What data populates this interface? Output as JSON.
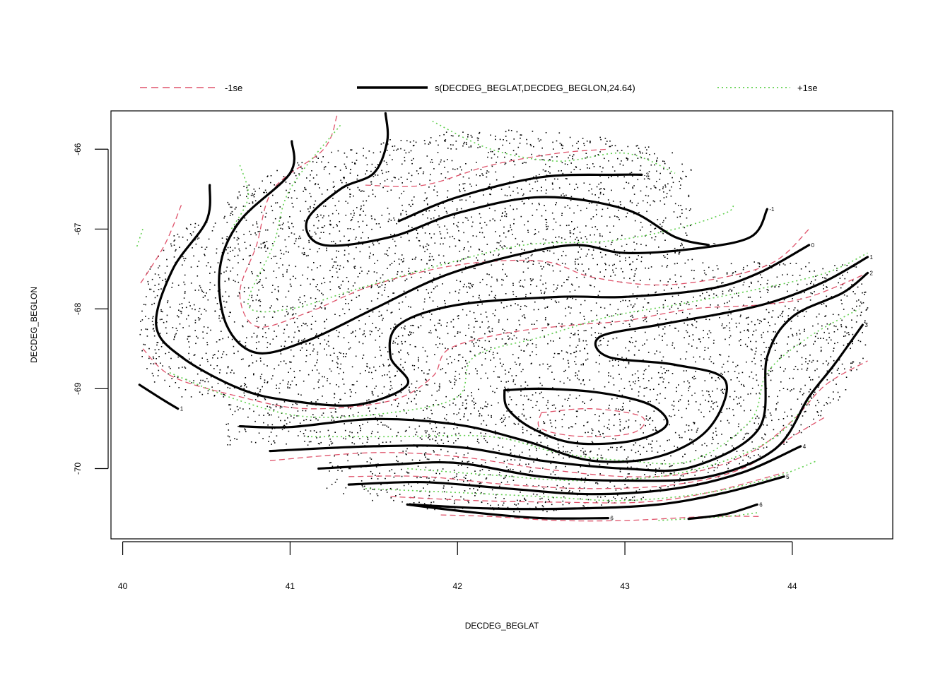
{
  "chart_data": {
    "type": "contour",
    "title": "",
    "xlabel": "DECDEG_BEGLAT",
    "ylabel": "DECDEG_BEGLON",
    "xlim": [
      39.93,
      44.6
    ],
    "ylim": [
      -70.88,
      -65.52
    ],
    "xticks": [
      40,
      41,
      42,
      43,
      44
    ],
    "yticks": [
      -66,
      -67,
      -68,
      -69,
      -70
    ],
    "legend_position": "top",
    "legend": [
      {
        "label": "-1se",
        "color": "#DF536B",
        "style": "dashed"
      },
      {
        "label": "s(DECDEG_BEGLAT,DECDEG_BEGLON,24.64)",
        "color": "#000000",
        "style": "solid"
      },
      {
        "label": "+1se",
        "color": "#61D04F",
        "style": "dotted"
      }
    ],
    "contour_labels": [
      "-2",
      "-1",
      "0",
      "1",
      "2",
      "3",
      "4",
      "5",
      "6"
    ],
    "colors": {
      "lower": "#DF536B",
      "fit": "#000000",
      "upper": "#61D04F",
      "points": "#000000"
    },
    "contours": [
      {
        "level": -2,
        "points": [
          [
            41.57,
            -65.55
          ],
          [
            41.58,
            -65.9
          ],
          [
            41.5,
            -66.3
          ],
          [
            41.3,
            -66.5
          ],
          [
            41.1,
            -66.9
          ],
          [
            41.2,
            -67.2
          ],
          [
            41.6,
            -67.1
          ],
          [
            42,
            -66.8
          ],
          [
            42.5,
            -66.6
          ],
          [
            43,
            -66.75
          ],
          [
            43.3,
            -67.1
          ],
          [
            43.5,
            -67.2
          ]
        ]
      },
      {
        "level": -2,
        "points": [
          [
            41.65,
            -66.9
          ],
          [
            42,
            -66.6
          ],
          [
            42.5,
            -66.35
          ],
          [
            42.95,
            -66.32
          ],
          [
            43.1,
            -66.32
          ]
        ]
      },
      {
        "level": -1,
        "points": [
          [
            41.01,
            -65.9
          ],
          [
            41,
            -66.3
          ],
          [
            40.7,
            -66.9
          ],
          [
            40.58,
            -67.5
          ],
          [
            40.62,
            -68.2
          ],
          [
            40.8,
            -68.55
          ],
          [
            41.1,
            -68.4
          ],
          [
            41.5,
            -68
          ],
          [
            41.9,
            -67.6
          ],
          [
            42.3,
            -67.35
          ],
          [
            42.7,
            -67.2
          ],
          [
            43.0,
            -67.3
          ],
          [
            43.4,
            -67.25
          ],
          [
            43.75,
            -67.1
          ],
          [
            43.85,
            -66.75
          ]
        ]
      },
      {
        "level": 0,
        "points": [
          [
            40.52,
            -66.45
          ],
          [
            40.5,
            -66.9
          ],
          [
            40.3,
            -67.5
          ],
          [
            40.2,
            -68.2
          ],
          [
            40.35,
            -68.6
          ],
          [
            40.7,
            -69
          ],
          [
            41,
            -69.15
          ],
          [
            41.4,
            -69.2
          ],
          [
            41.7,
            -68.95
          ],
          [
            41.6,
            -68.6
          ],
          [
            41.65,
            -68.2
          ],
          [
            42,
            -67.95
          ],
          [
            42.6,
            -67.85
          ],
          [
            43,
            -67.85
          ],
          [
            43.5,
            -67.75
          ],
          [
            43.8,
            -67.55
          ],
          [
            44.1,
            -67.2
          ]
        ]
      },
      {
        "level": 0,
        "points": [
          [
            42.28,
            -69.02
          ],
          [
            42.5,
            -69
          ],
          [
            42.85,
            -69.05
          ],
          [
            43.15,
            -69.2
          ],
          [
            43.25,
            -69.45
          ],
          [
            43.05,
            -69.65
          ],
          [
            42.7,
            -69.68
          ],
          [
            42.45,
            -69.5
          ],
          [
            42.3,
            -69.25
          ],
          [
            42.28,
            -69.02
          ]
        ]
      },
      {
        "level": 1,
        "points": [
          [
            40.7,
            -69.47
          ],
          [
            41,
            -69.48
          ],
          [
            41.5,
            -69.38
          ],
          [
            42,
            -69.45
          ],
          [
            42.4,
            -69.65
          ],
          [
            42.8,
            -69.9
          ],
          [
            43.2,
            -69.85
          ],
          [
            43.5,
            -69.5
          ],
          [
            43.6,
            -68.9
          ],
          [
            43.3,
            -68.7
          ],
          [
            42.9,
            -68.6
          ],
          [
            42.85,
            -68.35
          ],
          [
            43.2,
            -68.2
          ],
          [
            43.6,
            -68.05
          ],
          [
            43.9,
            -67.9
          ],
          [
            44.2,
            -67.65
          ],
          [
            44.45,
            -67.35
          ]
        ]
      },
      {
        "level": 2,
        "points": [
          [
            40.88,
            -69.78
          ],
          [
            41.5,
            -69.72
          ],
          [
            42,
            -69.73
          ],
          [
            42.5,
            -69.9
          ],
          [
            43,
            -70.0
          ],
          [
            43.4,
            -69.98
          ],
          [
            43.8,
            -69.5
          ],
          [
            43.85,
            -68.6
          ],
          [
            44.0,
            -68.1
          ],
          [
            44.3,
            -67.8
          ],
          [
            44.45,
            -67.55
          ]
        ]
      },
      {
        "level": 3,
        "points": [
          [
            41.17,
            -70.0
          ],
          [
            41.6,
            -69.95
          ],
          [
            42,
            -69.93
          ],
          [
            42.5,
            -70.1
          ],
          [
            43,
            -70.15
          ],
          [
            43.5,
            -70.1
          ],
          [
            43.9,
            -69.75
          ],
          [
            44.1,
            -69.1
          ],
          [
            44.25,
            -68.7
          ],
          [
            44.42,
            -68.2
          ]
        ]
      },
      {
        "level": 4,
        "points": [
          [
            41.35,
            -70.2
          ],
          [
            41.8,
            -70.17
          ],
          [
            42.3,
            -70.25
          ],
          [
            42.8,
            -70.32
          ],
          [
            43.3,
            -70.25
          ],
          [
            43.7,
            -70.05
          ],
          [
            44.05,
            -69.72
          ]
        ]
      },
      {
        "level": 5,
        "points": [
          [
            41.72,
            -70.45
          ],
          [
            42.2,
            -70.5
          ],
          [
            42.7,
            -70.5
          ],
          [
            43.2,
            -70.45
          ],
          [
            43.6,
            -70.3
          ],
          [
            43.95,
            -70.1
          ]
        ]
      },
      {
        "level": 6,
        "points": [
          [
            41.7,
            -70.45
          ],
          [
            42.1,
            -70.55
          ],
          [
            42.5,
            -70.62
          ],
          [
            42.9,
            -70.62
          ]
        ]
      },
      {
        "level": 6,
        "points": [
          [
            43.38,
            -70.63
          ],
          [
            43.6,
            -70.57
          ],
          [
            43.79,
            -70.45
          ]
        ]
      },
      {
        "level": 1,
        "points": [
          [
            40.1,
            -68.95
          ],
          [
            40.25,
            -69.15
          ],
          [
            40.33,
            -69.25
          ]
        ]
      }
    ],
    "contours_lower": [
      {
        "points": [
          [
            41.28,
            -65.58
          ],
          [
            41.2,
            -66.0
          ],
          [
            40.9,
            -66.5
          ],
          [
            40.8,
            -67.2
          ],
          [
            40.7,
            -67.8
          ],
          [
            40.8,
            -68.22
          ],
          [
            41.1,
            -68.05
          ],
          [
            41.5,
            -67.7
          ],
          [
            42,
            -67.45
          ],
          [
            42.5,
            -67.4
          ],
          [
            42.8,
            -67.6
          ],
          [
            43.2,
            -67.7
          ],
          [
            43.6,
            -67.6
          ],
          [
            43.9,
            -67.4
          ],
          [
            44.1,
            -67.0
          ]
        ]
      },
      {
        "points": [
          [
            40.35,
            -66.7
          ],
          [
            40.25,
            -67.2
          ],
          [
            40.1,
            -67.7
          ]
        ]
      },
      {
        "points": [
          [
            40.12,
            -68.5
          ],
          [
            40.3,
            -68.85
          ],
          [
            40.7,
            -69.1
          ],
          [
            41.1,
            -69.25
          ],
          [
            41.6,
            -69.15
          ],
          [
            41.85,
            -68.85
          ],
          [
            41.95,
            -68.5
          ],
          [
            42.3,
            -68.3
          ],
          [
            42.7,
            -68.2
          ],
          [
            43.0,
            -68.15
          ],
          [
            43.4,
            -68.0
          ],
          [
            43.8,
            -67.95
          ],
          [
            44.1,
            -67.85
          ],
          [
            44.45,
            -67.55
          ]
        ]
      },
      {
        "points": [
          [
            41.45,
            -66.45
          ],
          [
            41.8,
            -66.45
          ],
          [
            42.2,
            -66.2
          ],
          [
            42.6,
            -66.05
          ],
          [
            42.9,
            -66.0
          ]
        ]
      },
      {
        "points": [
          [
            42.5,
            -69.3
          ],
          [
            42.8,
            -69.25
          ],
          [
            43.1,
            -69.35
          ],
          [
            43.05,
            -69.55
          ],
          [
            42.75,
            -69.6
          ],
          [
            42.5,
            -69.5
          ],
          [
            42.5,
            -69.3
          ]
        ]
      },
      {
        "points": [
          [
            40.88,
            -69.9
          ],
          [
            41.5,
            -69.8
          ],
          [
            42,
            -69.85
          ],
          [
            42.5,
            -70.0
          ],
          [
            43,
            -70.1
          ],
          [
            43.4,
            -70.05
          ],
          [
            43.75,
            -69.8
          ],
          [
            44.0,
            -69.4
          ],
          [
            44.2,
            -68.95
          ],
          [
            44.45,
            -68.65
          ]
        ]
      },
      {
        "points": [
          [
            41.35,
            -70.1
          ],
          [
            41.8,
            -70.1
          ],
          [
            42.3,
            -70.2
          ],
          [
            42.8,
            -70.25
          ],
          [
            43.3,
            -70.2
          ],
          [
            43.7,
            -70.0
          ],
          [
            44.0,
            -69.6
          ],
          [
            44.2,
            -69.35
          ]
        ]
      },
      {
        "points": [
          [
            41.6,
            -70.35
          ],
          [
            42.1,
            -70.4
          ],
          [
            42.6,
            -70.42
          ],
          [
            43.1,
            -70.42
          ],
          [
            43.5,
            -70.3
          ],
          [
            43.95,
            -70.05
          ]
        ]
      },
      {
        "points": [
          [
            41.9,
            -70.58
          ],
          [
            42.2,
            -70.6
          ],
          [
            42.6,
            -70.65
          ],
          [
            43.0,
            -70.65
          ],
          [
            43.5,
            -70.6
          ],
          [
            43.8,
            -70.6
          ]
        ]
      }
    ],
    "contours_upper": [
      {
        "points": [
          [
            41.3,
            -65.7
          ],
          [
            41.0,
            -66.5
          ],
          [
            40.9,
            -67.2
          ],
          [
            40.75,
            -67.95
          ],
          [
            41.0,
            -68.0
          ],
          [
            41.4,
            -67.75
          ],
          [
            41.9,
            -67.45
          ],
          [
            42.4,
            -67.2
          ],
          [
            42.9,
            -67.15
          ],
          [
            43.3,
            -67.0
          ],
          [
            43.6,
            -66.8
          ],
          [
            43.65,
            -66.7
          ]
        ]
      },
      {
        "points": [
          [
            40.12,
            -67.0
          ],
          [
            40.08,
            -67.25
          ]
        ]
      },
      {
        "points": [
          [
            41.85,
            -65.65
          ],
          [
            42.2,
            -66.0
          ],
          [
            42.6,
            -66.15
          ],
          [
            43.0,
            -66.05
          ],
          [
            43.3,
            -66.3
          ]
        ]
      },
      {
        "points": [
          [
            40.7,
            -66.2
          ],
          [
            40.75,
            -66.6
          ],
          [
            40.65,
            -67.0
          ]
        ]
      },
      {
        "points": [
          [
            40.28,
            -68.8
          ],
          [
            40.7,
            -69.15
          ],
          [
            41.1,
            -69.35
          ],
          [
            41.6,
            -69.3
          ],
          [
            42.0,
            -69.1
          ],
          [
            42.1,
            -68.6
          ],
          [
            42.5,
            -68.35
          ],
          [
            42.9,
            -68.1
          ],
          [
            43.3,
            -67.95
          ],
          [
            43.8,
            -67.75
          ],
          [
            44.2,
            -67.55
          ],
          [
            44.45,
            -67.3
          ]
        ]
      },
      {
        "points": [
          [
            41.1,
            -69.6
          ],
          [
            41.6,
            -69.6
          ],
          [
            42.2,
            -69.6
          ],
          [
            42.6,
            -69.8
          ],
          [
            43.0,
            -69.9
          ],
          [
            43.4,
            -69.9
          ],
          [
            43.75,
            -69.4
          ],
          [
            43.85,
            -68.8
          ],
          [
            44.1,
            -68.35
          ],
          [
            44.4,
            -68.0
          ]
        ]
      },
      {
        "points": [
          [
            41.45,
            -70.25
          ],
          [
            42.0,
            -70.3
          ],
          [
            42.5,
            -70.35
          ],
          [
            43.0,
            -70.4
          ],
          [
            43.5,
            -70.3
          ],
          [
            43.9,
            -70.1
          ],
          [
            44.15,
            -69.9
          ]
        ]
      },
      {
        "points": [
          [
            41.7,
            -70.0
          ],
          [
            42.2,
            -70.08
          ],
          [
            42.7,
            -70.15
          ],
          [
            43.2,
            -70.1
          ],
          [
            43.6,
            -69.9
          ],
          [
            43.9,
            -69.6
          ],
          [
            44.1,
            -69.15
          ]
        ]
      },
      {
        "points": [
          [
            43.2,
            -70.65
          ],
          [
            43.6,
            -70.6
          ],
          [
            43.8,
            -70.55
          ]
        ]
      }
    ],
    "point_region": {
      "x": [
        40.1,
        44.45
      ],
      "y": [
        -70.65,
        -65.6
      ]
    }
  }
}
